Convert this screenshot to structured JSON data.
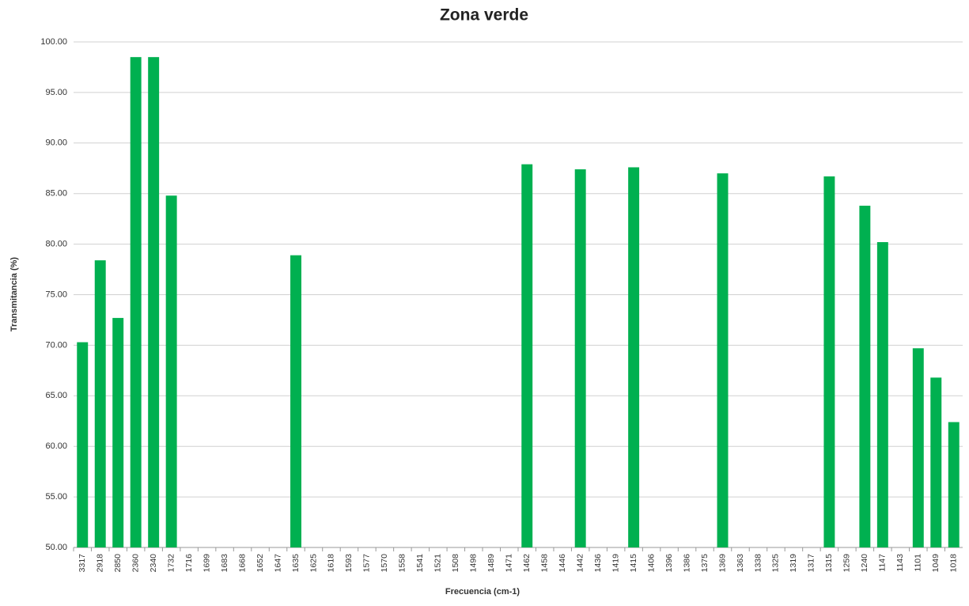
{
  "chart_data": {
    "type": "bar",
    "title": "Zona verde",
    "x_label": "Frecuencia (cm-1)",
    "y_label": "Transmitancia (%)",
    "categories": [
      "3317",
      "2918",
      "2850",
      "2360",
      "2340",
      "1732",
      "1716",
      "1699",
      "1683",
      "1668",
      "1652",
      "1647",
      "1635",
      "1625",
      "1618",
      "1593",
      "1577",
      "1570",
      "1558",
      "1541",
      "1521",
      "1508",
      "1498",
      "1489",
      "1471",
      "1462",
      "1458",
      "1446",
      "1442",
      "1436",
      "1419",
      "1415",
      "1406",
      "1396",
      "1386",
      "1375",
      "1369",
      "1363",
      "1338",
      "1325",
      "1319",
      "1317",
      "1315",
      "1259",
      "1240",
      "1147",
      "1143",
      "1101",
      "1049",
      "1018"
    ],
    "values": [
      70.3,
      78.4,
      72.7,
      98.5,
      98.5,
      84.8,
      null,
      null,
      null,
      null,
      null,
      null,
      78.9,
      null,
      null,
      null,
      null,
      null,
      null,
      null,
      null,
      null,
      null,
      null,
      null,
      87.9,
      null,
      null,
      87.4,
      null,
      null,
      87.6,
      null,
      null,
      null,
      null,
      87.0,
      null,
      null,
      null,
      null,
      null,
      86.7,
      null,
      83.8,
      80.2,
      null,
      69.7,
      66.8,
      62.4
    ],
    "color": "#00b050",
    "ylim": [
      50,
      100
    ],
    "yticks": [
      {
        "value": 50,
        "label": "50.00"
      },
      {
        "value": 55,
        "label": "55.00"
      },
      {
        "value": 60,
        "label": "60.00"
      },
      {
        "value": 65,
        "label": "65.00"
      },
      {
        "value": 70,
        "label": "70.00"
      },
      {
        "value": 75,
        "label": "75.00"
      },
      {
        "value": 80,
        "label": "80.00"
      },
      {
        "value": 85,
        "label": "85.00"
      },
      {
        "value": 90,
        "label": "90.00"
      },
      {
        "value": 95,
        "label": "95.00"
      },
      {
        "value": 100,
        "label": "100.00"
      }
    ],
    "grid": true
  }
}
